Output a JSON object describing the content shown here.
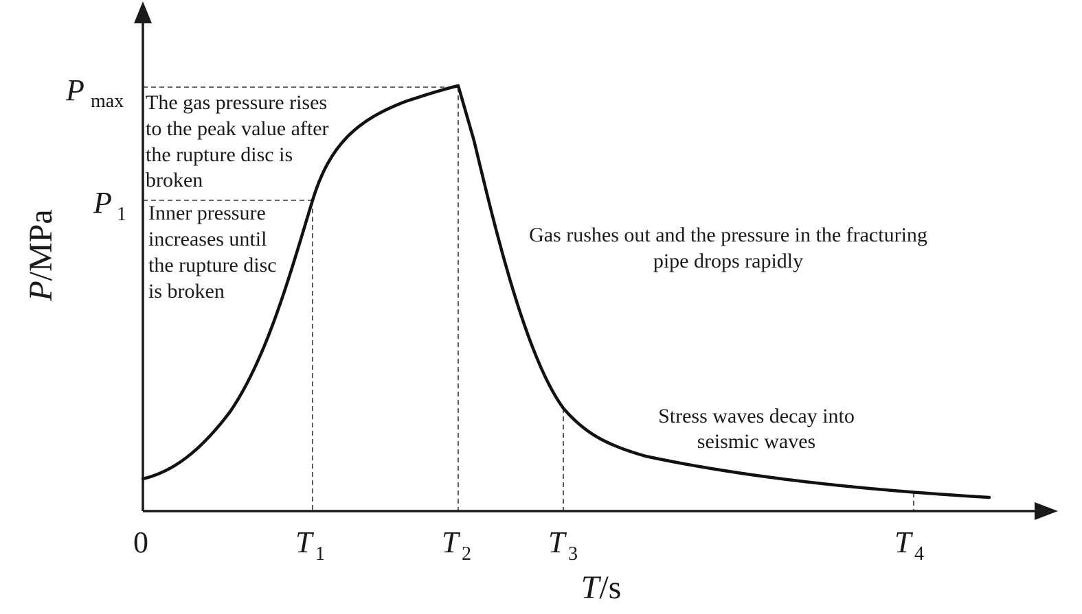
{
  "chart_data": {
    "type": "line",
    "xlabel": "T",
    "xlabel_unit": "/s",
    "ylabel": "P",
    "ylabel_unit": "/MPa",
    "origin_label": "0",
    "x_ticks": [
      {
        "base": "T",
        "sub": "1"
      },
      {
        "base": "T",
        "sub": "2"
      },
      {
        "base": "T",
        "sub": "3"
      },
      {
        "base": "T",
        "sub": "4"
      }
    ],
    "y_ticks": [
      {
        "base": "P",
        "sub": "1"
      },
      {
        "base": "P",
        "sub": "max"
      }
    ],
    "annotations": {
      "peak_rise": [
        "The gas pressure rises",
        "to the peak value after",
        "the rupture disc is",
        "broken"
      ],
      "inner_pressure": [
        "Inner pressure",
        "increases until",
        "the rupture disc",
        "is broken"
      ],
      "gas_rush": [
        "Gas rushes out and the pressure in the fracturing",
        "pipe drops rapidly"
      ],
      "stress_waves": [
        "Stress waves decay into",
        "seismic waves"
      ]
    },
    "grid": false,
    "legend": "none"
  }
}
